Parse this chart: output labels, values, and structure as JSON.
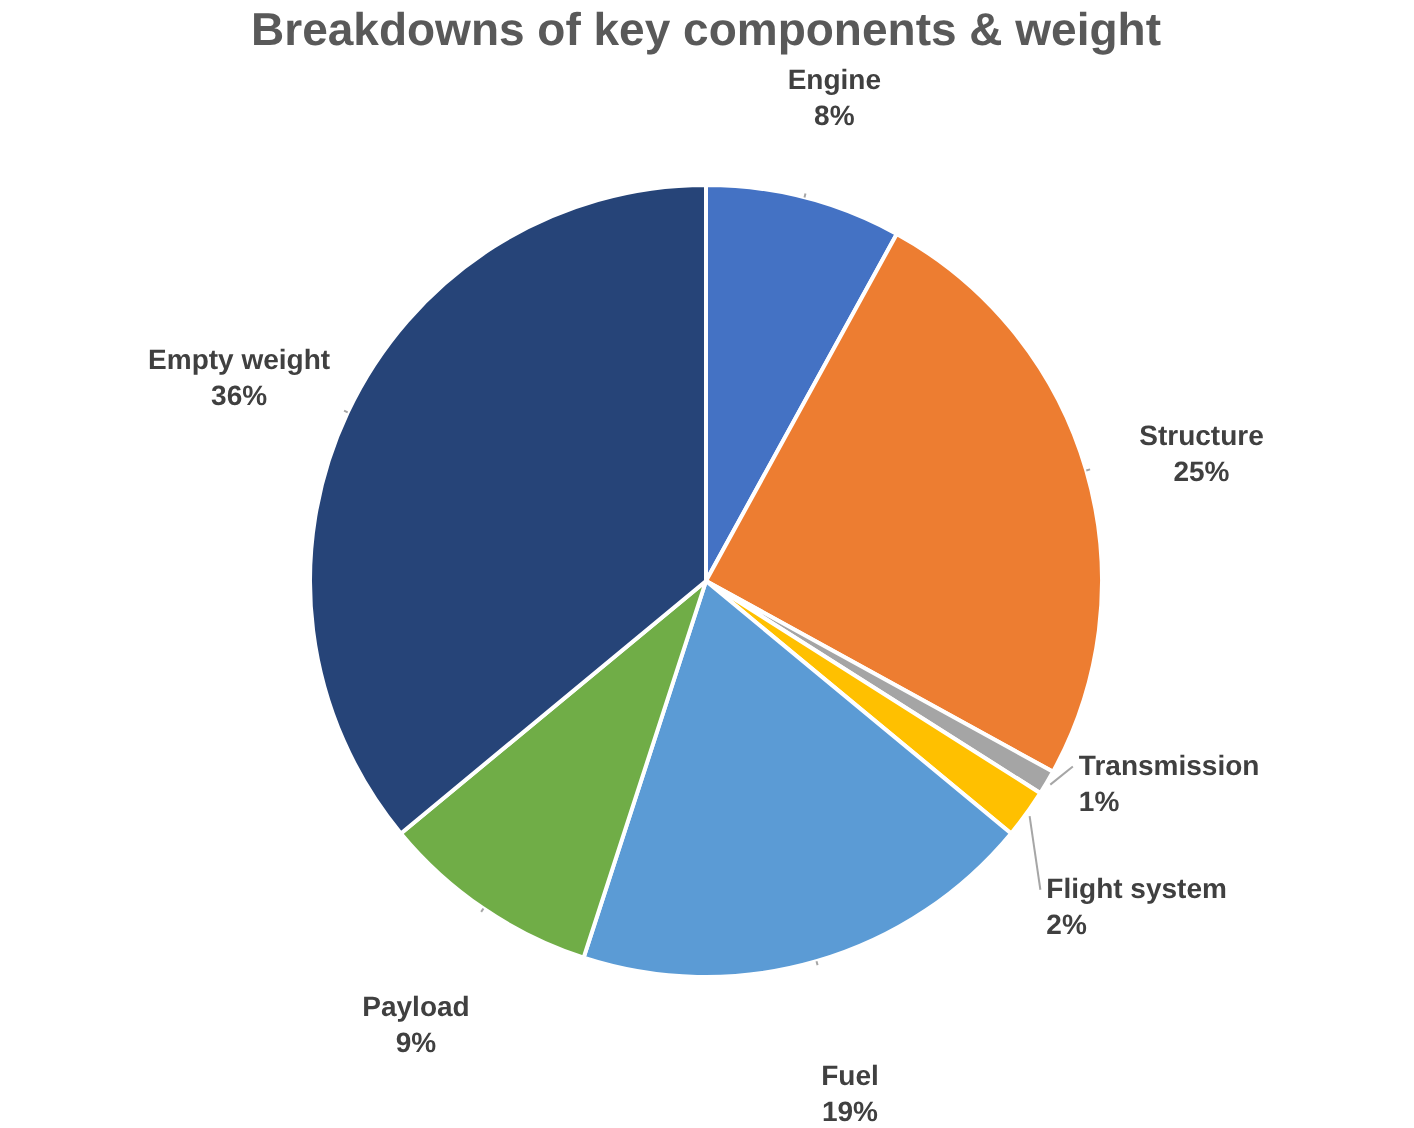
{
  "chart_data": {
    "type": "pie",
    "title": "Breakdowns of key components & weight",
    "categories": [
      "Engine",
      "Structure",
      "Transmission",
      "Flight system",
      "Fuel",
      "Payload",
      "Empty weight"
    ],
    "values": [
      8,
      25,
      1,
      2,
      19,
      9,
      36
    ],
    "value_labels": [
      "8%",
      "25%",
      "1%",
      "2%",
      "19%",
      "9%",
      "36%"
    ],
    "colors": [
      "#4472c4",
      "#ed7d31",
      "#a5a5a5",
      "#ffc000",
      "#5b9bd5",
      "#70ad47",
      "#264478"
    ]
  }
}
